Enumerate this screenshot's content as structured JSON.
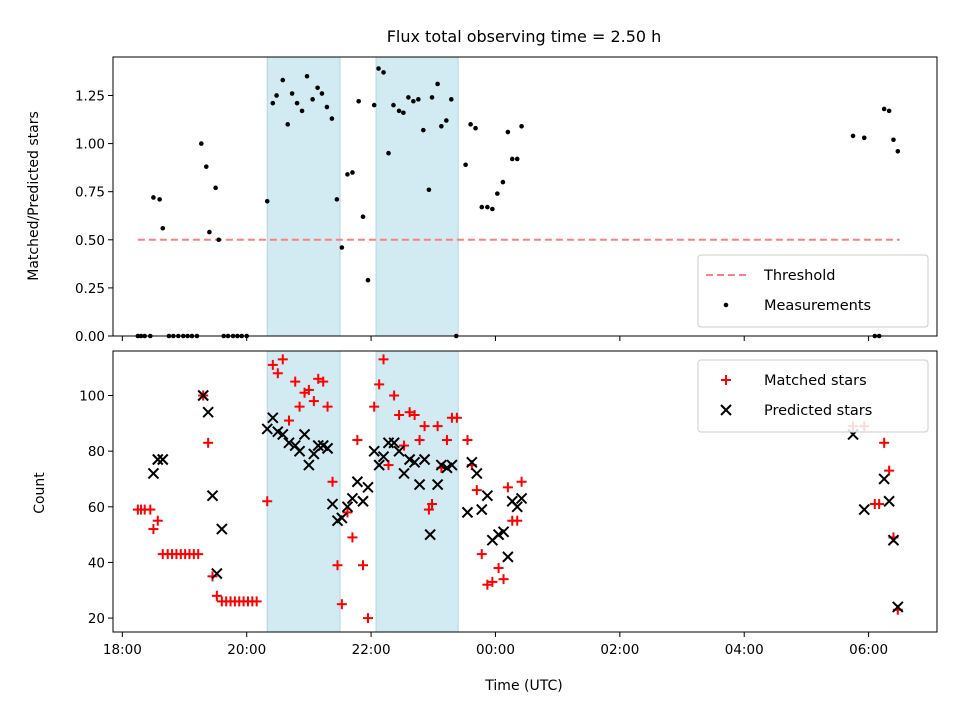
{
  "chart_data": {
    "type": "scatter",
    "title": "Flux total observing time = 2.50 h",
    "xlabel": "Time (UTC)",
    "x_unit": "hours (UTC clock)",
    "x_tick_labels": [
      "18:00",
      "20:00",
      "22:00",
      "00:00",
      "02:00",
      "04:00",
      "06:00"
    ],
    "xlim": [
      17.85,
      31.1
    ],
    "shaded_intervals": [
      [
        20.33,
        21.5
      ],
      [
        22.08,
        23.4
      ]
    ],
    "shade_color": "#add8e6",
    "panels": [
      {
        "id": "ratio",
        "ylabel": "Matched/Predicted stars",
        "ylim": [
          0,
          1.45
        ],
        "y_ticks": [
          "0.00",
          "0.25",
          "0.50",
          "0.75",
          "1.00",
          "1.25"
        ],
        "legend_position": "lower-right",
        "threshold": {
          "name": "Threshold",
          "value": 0.5,
          "x_range": [
            18.25,
            30.5
          ],
          "color": "#ff7f7f"
        },
        "series": [
          {
            "name": "Measurements",
            "marker": "dot",
            "color": "#000000",
            "points": [
              [
                18.25,
                0.0
              ],
              [
                18.3,
                0.0
              ],
              [
                18.36,
                0.0
              ],
              [
                18.45,
                0.0
              ],
              [
                18.5,
                0.72
              ],
              [
                18.6,
                0.71
              ],
              [
                18.65,
                0.56
              ],
              [
                18.75,
                0.0
              ],
              [
                18.82,
                0.0
              ],
              [
                18.9,
                0.0
              ],
              [
                18.98,
                0.0
              ],
              [
                19.05,
                0.0
              ],
              [
                19.12,
                0.0
              ],
              [
                19.2,
                0.0
              ],
              [
                19.27,
                1.0
              ],
              [
                19.35,
                0.88
              ],
              [
                19.4,
                0.54
              ],
              [
                19.5,
                0.77
              ],
              [
                19.55,
                0.5
              ],
              [
                19.63,
                0.0
              ],
              [
                19.7,
                0.0
              ],
              [
                19.78,
                0.0
              ],
              [
                19.85,
                0.0
              ],
              [
                19.92,
                0.0
              ],
              [
                20.0,
                0.0
              ],
              [
                20.33,
                0.7
              ],
              [
                20.42,
                1.21
              ],
              [
                20.48,
                1.25
              ],
              [
                20.58,
                1.33
              ],
              [
                20.66,
                1.1
              ],
              [
                20.73,
                1.26
              ],
              [
                20.81,
                1.21
              ],
              [
                20.89,
                1.17
              ],
              [
                20.97,
                1.35
              ],
              [
                21.06,
                1.23
              ],
              [
                21.14,
                1.29
              ],
              [
                21.21,
                1.26
              ],
              [
                21.29,
                1.19
              ],
              [
                21.37,
                1.13
              ],
              [
                21.45,
                0.71
              ],
              [
                21.53,
                0.46
              ],
              [
                21.62,
                0.84
              ],
              [
                21.7,
                0.85
              ],
              [
                21.8,
                1.22
              ],
              [
                21.87,
                0.62
              ],
              [
                21.95,
                0.29
              ],
              [
                22.05,
                1.2
              ],
              [
                22.12,
                1.39
              ],
              [
                22.2,
                1.37
              ],
              [
                22.28,
                0.95
              ],
              [
                22.36,
                1.2
              ],
              [
                22.45,
                1.17
              ],
              [
                22.52,
                1.16
              ],
              [
                22.6,
                1.24
              ],
              [
                22.68,
                1.22
              ],
              [
                22.76,
                1.23
              ],
              [
                22.84,
                1.07
              ],
              [
                22.93,
                0.76
              ],
              [
                22.98,
                1.24
              ],
              [
                23.07,
                1.31
              ],
              [
                23.13,
                1.09
              ],
              [
                23.21,
                1.12
              ],
              [
                23.29,
                1.23
              ],
              [
                23.37,
                0.0
              ],
              [
                23.52,
                0.89
              ],
              [
                23.6,
                1.1
              ],
              [
                23.68,
                1.08
              ],
              [
                23.78,
                0.67
              ],
              [
                23.87,
                0.67
              ],
              [
                23.95,
                0.66
              ],
              [
                24.03,
                0.74
              ],
              [
                24.12,
                0.8
              ],
              [
                24.2,
                1.06
              ],
              [
                24.27,
                0.92
              ],
              [
                24.35,
                0.92
              ],
              [
                24.42,
                1.09
              ],
              [
                29.75,
                1.04
              ],
              [
                29.93,
                1.03
              ],
              [
                30.1,
                0.0
              ],
              [
                30.17,
                0.0
              ],
              [
                30.25,
                1.18
              ],
              [
                30.33,
                1.17
              ],
              [
                30.4,
                1.02
              ],
              [
                30.47,
                0.96
              ]
            ]
          }
        ]
      },
      {
        "id": "count",
        "ylabel": "Count",
        "ylim": [
          15,
          116
        ],
        "y_ticks": [
          "20",
          "40",
          "60",
          "80",
          "100"
        ],
        "legend_position": "upper-right",
        "series": [
          {
            "name": "Matched stars",
            "marker": "plus",
            "color": "#ff0000",
            "points": [
              [
                18.25,
                59
              ],
              [
                18.3,
                59
              ],
              [
                18.36,
                59
              ],
              [
                18.45,
                59
              ],
              [
                18.5,
                52
              ],
              [
                18.57,
                55
              ],
              [
                18.65,
                43
              ],
              [
                18.73,
                43
              ],
              [
                18.8,
                43
              ],
              [
                18.87,
                43
              ],
              [
                18.94,
                43
              ],
              [
                19.01,
                43
              ],
              [
                19.08,
                43
              ],
              [
                19.15,
                43
              ],
              [
                19.22,
                43
              ],
              [
                19.3,
                100
              ],
              [
                19.38,
                83
              ],
              [
                19.45,
                35
              ],
              [
                19.52,
                28
              ],
              [
                19.6,
                26
              ],
              [
                19.67,
                26
              ],
              [
                19.74,
                26
              ],
              [
                19.81,
                26
              ],
              [
                19.88,
                26
              ],
              [
                19.95,
                26
              ],
              [
                20.02,
                26
              ],
              [
                20.09,
                26
              ],
              [
                20.16,
                26
              ],
              [
                20.33,
                62
              ],
              [
                20.42,
                111
              ],
              [
                20.5,
                108
              ],
              [
                20.58,
                113
              ],
              [
                20.68,
                91
              ],
              [
                20.78,
                105
              ],
              [
                20.85,
                96
              ],
              [
                20.93,
                101
              ],
              [
                21.0,
                102
              ],
              [
                21.08,
                98
              ],
              [
                21.15,
                106
              ],
              [
                21.23,
                105
              ],
              [
                21.3,
                96
              ],
              [
                21.38,
                69
              ],
              [
                21.46,
                39
              ],
              [
                21.53,
                25
              ],
              [
                21.62,
                58
              ],
              [
                21.7,
                49
              ],
              [
                21.78,
                84
              ],
              [
                21.87,
                39
              ],
              [
                21.95,
                20
              ],
              [
                22.05,
                96
              ],
              [
                22.13,
                104
              ],
              [
                22.2,
                113
              ],
              [
                22.28,
                75
              ],
              [
                22.37,
                100
              ],
              [
                22.45,
                93
              ],
              [
                22.53,
                82
              ],
              [
                22.62,
                94
              ],
              [
                22.7,
                93
              ],
              [
                22.78,
                84
              ],
              [
                22.86,
                89
              ],
              [
                22.93,
                59
              ],
              [
                22.98,
                61
              ],
              [
                23.07,
                89
              ],
              [
                23.13,
                74
              ],
              [
                23.22,
                84
              ],
              [
                23.3,
                92
              ],
              [
                23.38,
                92
              ],
              [
                23.55,
                84
              ],
              [
                23.62,
                75
              ],
              [
                23.7,
                66
              ],
              [
                23.78,
                43
              ],
              [
                23.87,
                32
              ],
              [
                23.95,
                33
              ],
              [
                24.05,
                38
              ],
              [
                24.13,
                34
              ],
              [
                24.2,
                67
              ],
              [
                24.27,
                55
              ],
              [
                24.35,
                55
              ],
              [
                24.42,
                69
              ],
              [
                29.75,
                89
              ],
              [
                29.93,
                89
              ],
              [
                30.1,
                61
              ],
              [
                30.17,
                61
              ],
              [
                30.25,
                83
              ],
              [
                30.33,
                73
              ],
              [
                30.4,
                49
              ],
              [
                30.47,
                23
              ]
            ]
          },
          {
            "name": "Predicted stars",
            "marker": "x",
            "color": "#000000",
            "points": [
              [
                18.5,
                72
              ],
              [
                18.57,
                77
              ],
              [
                18.65,
                77
              ],
              [
                19.3,
                100
              ],
              [
                19.38,
                94
              ],
              [
                19.45,
                64
              ],
              [
                19.52,
                36
              ],
              [
                19.6,
                52
              ],
              [
                20.33,
                88
              ],
              [
                20.42,
                92
              ],
              [
                20.5,
                87
              ],
              [
                20.58,
                86
              ],
              [
                20.68,
                83
              ],
              [
                20.78,
                82
              ],
              [
                20.85,
                80
              ],
              [
                20.93,
                86
              ],
              [
                21.0,
                75
              ],
              [
                21.08,
                79
              ],
              [
                21.15,
                82
              ],
              [
                21.23,
                82
              ],
              [
                21.3,
                81
              ],
              [
                21.38,
                61
              ],
              [
                21.46,
                55
              ],
              [
                21.53,
                56
              ],
              [
                21.62,
                60
              ],
              [
                21.7,
                63
              ],
              [
                21.78,
                69
              ],
              [
                21.87,
                62
              ],
              [
                21.95,
                67
              ],
              [
                22.05,
                80
              ],
              [
                22.13,
                75
              ],
              [
                22.2,
                78
              ],
              [
                22.28,
                83
              ],
              [
                22.37,
                83
              ],
              [
                22.45,
                80
              ],
              [
                22.53,
                72
              ],
              [
                22.62,
                77
              ],
              [
                22.7,
                76
              ],
              [
                22.78,
                68
              ],
              [
                22.86,
                77
              ],
              [
                22.95,
                50
              ],
              [
                23.07,
                68
              ],
              [
                23.13,
                75
              ],
              [
                23.22,
                74
              ],
              [
                23.3,
                75
              ],
              [
                23.55,
                58
              ],
              [
                23.62,
                76
              ],
              [
                23.7,
                72
              ],
              [
                23.78,
                59
              ],
              [
                23.87,
                64
              ],
              [
                23.95,
                48
              ],
              [
                24.05,
                50
              ],
              [
                24.13,
                51
              ],
              [
                24.2,
                42
              ],
              [
                24.27,
                62
              ],
              [
                24.35,
                60
              ],
              [
                24.42,
                63
              ],
              [
                29.75,
                86
              ],
              [
                29.93,
                59
              ],
              [
                30.25,
                70
              ],
              [
                30.33,
                62
              ],
              [
                30.4,
                48
              ],
              [
                30.47,
                24
              ]
            ]
          }
        ]
      }
    ]
  }
}
